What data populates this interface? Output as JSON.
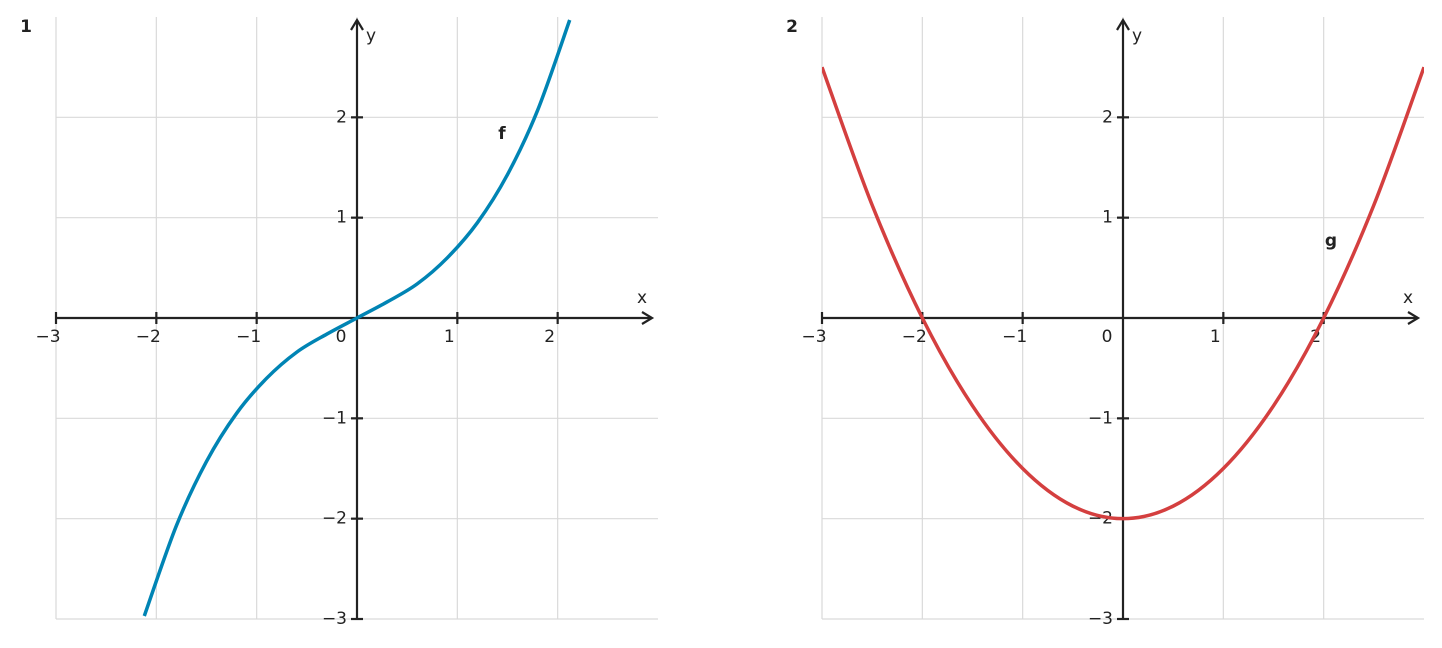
{
  "chart_data": [
    {
      "type": "line",
      "title": "1",
      "x_label": "x",
      "y_label": "y",
      "grid": true,
      "xlim": [
        -3,
        3
      ],
      "ylim": [
        -3,
        3
      ],
      "xticks": [
        {
          "value": -3,
          "label": "−3"
        },
        {
          "value": -2,
          "label": "−2"
        },
        {
          "value": -1,
          "label": "−1"
        },
        0,
        1,
        2
      ],
      "yticks": [
        {
          "value": -3,
          "label": "−3"
        },
        {
          "value": -2,
          "label": "−2"
        },
        {
          "value": -1,
          "label": "−1"
        },
        1,
        2
      ],
      "series": [
        {
          "name": "f",
          "color": "#0084b4",
          "x": [
            -2.12,
            -1.8,
            -1.5,
            -1.2,
            -0.9,
            -0.6,
            -0.3,
            0,
            0.3,
            0.6,
            0.9,
            1.2,
            1.5,
            1.8,
            2.12
          ],
          "values": [
            -2.97,
            -2.07,
            -1.43,
            -0.95,
            -0.6,
            -0.34,
            -0.16,
            0,
            0.16,
            0.34,
            0.6,
            0.95,
            1.43,
            2.07,
            2.97
          ]
        }
      ]
    },
    {
      "type": "line",
      "title": "2",
      "x_label": "x",
      "y_label": "y",
      "grid": true,
      "xlim": [
        -3,
        3
      ],
      "ylim": [
        -3,
        3
      ],
      "xticks": [
        {
          "value": -3,
          "label": "−3"
        },
        {
          "value": -2,
          "label": "−2"
        },
        {
          "value": -1,
          "label": "−1"
        },
        0,
        1,
        2
      ],
      "yticks": [
        {
          "value": -3,
          "label": "−3"
        },
        {
          "value": -2,
          "label": "−2"
        },
        {
          "value": -1,
          "label": "−1"
        },
        1,
        2
      ],
      "series": [
        {
          "name": "g",
          "color": "#d43f3f",
          "x": [
            -3,
            -2.5,
            -2,
            -1.5,
            -1,
            -0.5,
            0,
            0.5,
            1,
            1.5,
            2,
            2.5,
            3
          ],
          "values": [
            2.5,
            1.125,
            0,
            -0.875,
            -1.5,
            -1.875,
            -2,
            -1.875,
            -1.5,
            -0.875,
            0,
            1.125,
            2.5
          ]
        }
      ]
    }
  ]
}
